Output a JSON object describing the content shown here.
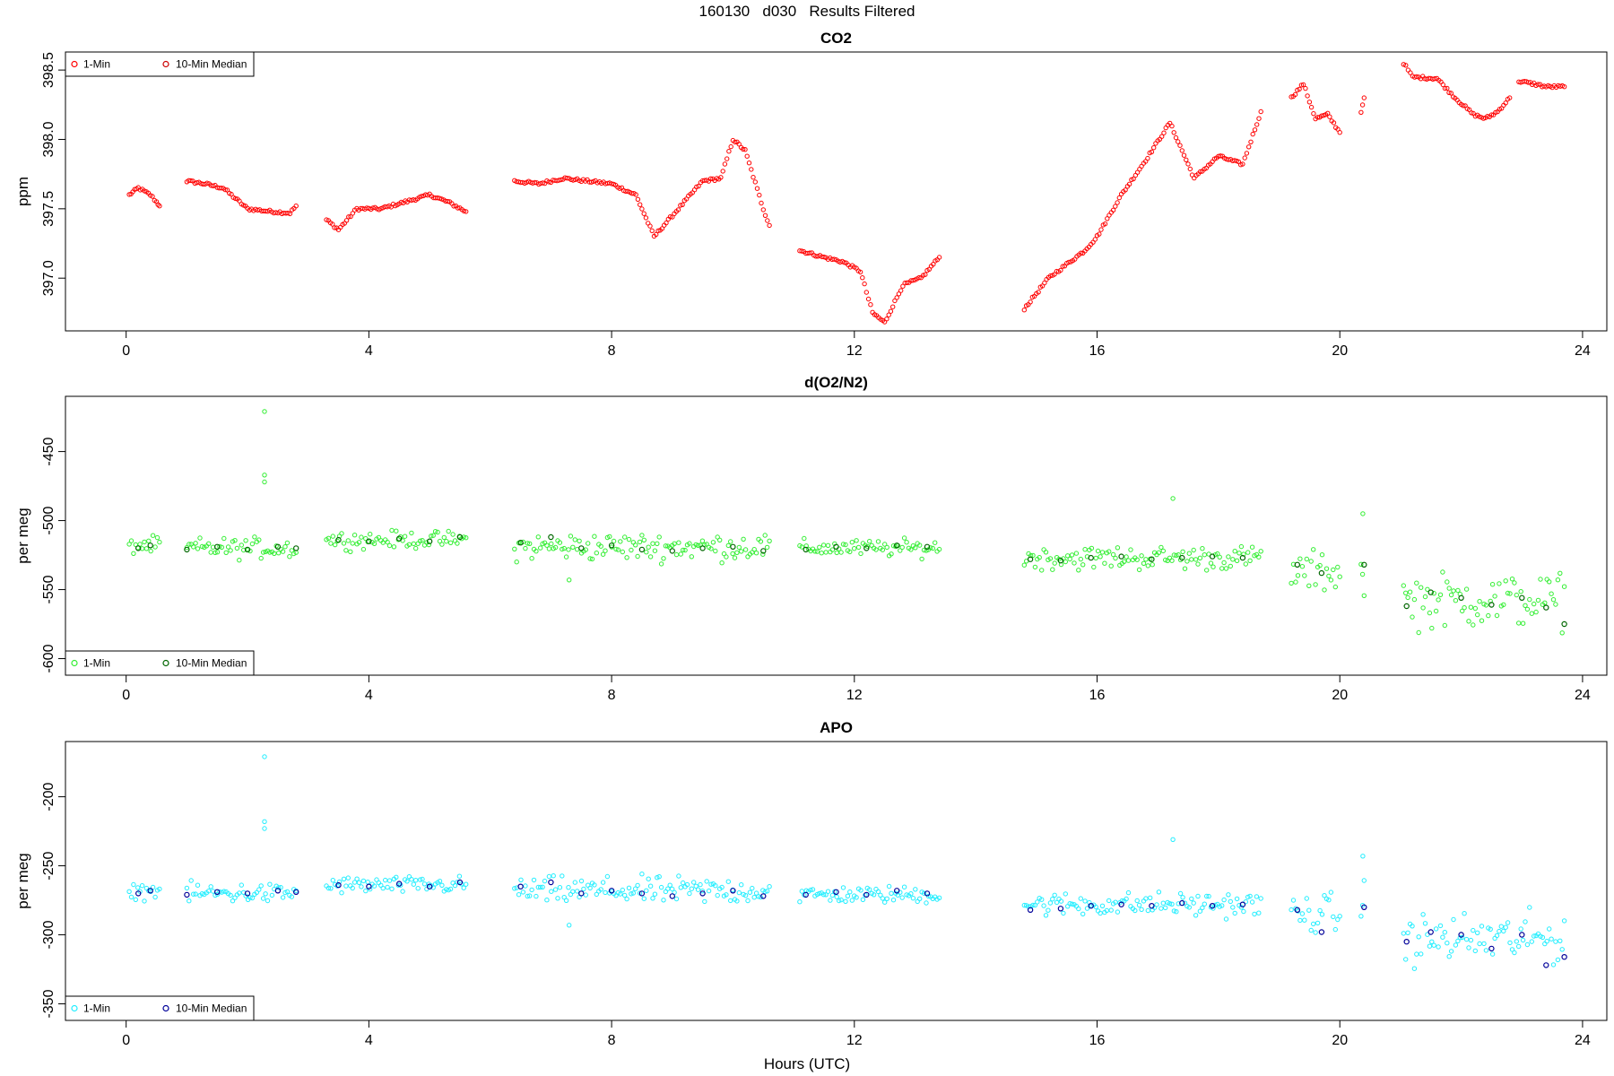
{
  "page_title": "160130   d030   Results Filtered",
  "x_axis_label": "Hours (UTC)",
  "chart_data": [
    {
      "type": "scatter",
      "title": "CO2",
      "ylabel": "ppm",
      "xlim": [
        -1,
        24.4
      ],
      "ylim": [
        396.62,
        398.63
      ],
      "xticks": [
        0,
        4,
        8,
        12,
        16,
        20,
        24
      ],
      "yticks": [
        397.0,
        397.5,
        398.0,
        398.5
      ],
      "ytick_labels": [
        "397.0",
        "397.5",
        "398.0",
        "398.5"
      ],
      "legend": {
        "placement": "top-left",
        "entries": [
          "1-Min",
          "10-Min Median"
        ]
      },
      "series": [
        {
          "name": "1-Min",
          "color": "#ff0000",
          "marker": "open-circle",
          "kind": "1min",
          "segments": [
            {
              "x": [
                0.05,
                0.2,
                0.4,
                0.5,
                0.55
              ],
              "y": [
                397.6,
                397.65,
                397.6,
                397.55,
                397.52
              ]
            },
            {
              "x": [
                1.0,
                1.3,
                1.6,
                2.0,
                2.4,
                2.7,
                2.8
              ],
              "y": [
                397.7,
                397.68,
                397.65,
                397.5,
                397.48,
                397.47,
                397.52
              ]
            },
            {
              "x": [
                3.3,
                3.5,
                3.8,
                4.2,
                4.6,
                5.0,
                5.3,
                5.6
              ],
              "y": [
                397.42,
                397.35,
                397.5,
                397.5,
                397.55,
                397.6,
                397.55,
                397.48
              ]
            },
            {
              "x": [
                6.4,
                6.8,
                7.2,
                7.6,
                8.0,
                8.4,
                8.7,
                9.0,
                9.5,
                9.8,
                10.0,
                10.2,
                10.5,
                10.6
              ],
              "y": [
                397.7,
                397.68,
                397.72,
                397.7,
                397.68,
                397.6,
                397.3,
                397.45,
                397.7,
                397.72,
                398.0,
                397.92,
                397.5,
                397.38
              ]
            },
            {
              "x": [
                11.1,
                11.5,
                11.8,
                12.1,
                12.3,
                12.5,
                12.8,
                13.1,
                13.4
              ],
              "y": [
                397.2,
                397.15,
                397.12,
                397.05,
                396.75,
                396.68,
                396.95,
                397.0,
                397.15
              ]
            },
            {
              "x": [
                14.8,
                15.2,
                15.5,
                15.8,
                16.0,
                16.4,
                16.8,
                17.2,
                17.6,
                18.0,
                18.4,
                18.7
              ],
              "y": [
                396.78,
                397.0,
                397.1,
                397.2,
                397.3,
                397.6,
                397.85,
                398.12,
                397.72,
                397.88,
                397.82,
                398.2
              ]
            },
            {
              "x": [
                19.2,
                19.4,
                19.6,
                19.8,
                20.0
              ],
              "y": [
                398.3,
                398.4,
                398.15,
                398.18,
                398.05
              ]
            },
            {
              "x": [
                20.35,
                20.4
              ],
              "y": [
                398.2,
                398.3
              ]
            },
            {
              "x": [
                21.05,
                21.2,
                21.6,
                21.9,
                22.2,
                22.4,
                22.6,
                22.8
              ],
              "y": [
                398.55,
                398.45,
                398.44,
                398.3,
                398.18,
                398.15,
                398.2,
                398.3
              ]
            },
            {
              "x": [
                22.95,
                23.2,
                23.4,
                23.7
              ],
              "y": [
                398.42,
                398.4,
                398.38,
                398.38
              ]
            }
          ]
        },
        {
          "name": "10-Min Median",
          "color": "#cc0000",
          "marker": "open-circle",
          "kind": "median",
          "x": [],
          "y": []
        }
      ]
    },
    {
      "type": "scatter",
      "title": "d(O2/N2)",
      "ylabel": "per meg",
      "xlim": [
        -1,
        24.4
      ],
      "ylim": [
        -612,
        -410
      ],
      "xticks": [
        0,
        4,
        8,
        12,
        16,
        20,
        24
      ],
      "yticks": [
        -450,
        -500,
        -550,
        -600
      ],
      "ytick_labels": [
        "-450",
        "-500",
        "-550",
        "-600"
      ],
      "legend": {
        "placement": "bottom-left",
        "entries": [
          "1-Min",
          "10-Min Median"
        ]
      },
      "series": [
        {
          "name": "1-Min",
          "color": "#33ee33",
          "marker": "open-circle",
          "kind": "1min",
          "bands": [
            {
              "from": 0.05,
              "to": 0.55,
              "center": -518,
              "spread": 5
            },
            {
              "from": 1.0,
              "to": 2.8,
              "center": -520,
              "spread": 6
            },
            {
              "from": 3.3,
              "to": 5.6,
              "center": -514,
              "spread": 5
            },
            {
              "from": 6.4,
              "to": 10.6,
              "center": -519,
              "spread": 8
            },
            {
              "from": 11.1,
              "to": 13.4,
              "center": -520,
              "spread": 5
            },
            {
              "from": 14.8,
              "to": 18.7,
              "center": -527,
              "spread": 7
            },
            {
              "from": 19.2,
              "to": 20.0,
              "center": -537,
              "spread": 12
            },
            {
              "from": 20.35,
              "to": 20.4,
              "center": -535,
              "spread": 18
            },
            {
              "from": 21.05,
              "to": 23.7,
              "center": -558,
              "spread": 16
            }
          ],
          "outliers": {
            "x": [
              2.28,
              2.28,
              2.28,
              7.3,
              17.25,
              20.38
            ],
            "y": [
              -421,
              -467,
              -472,
              -543,
              -484,
              -495
            ]
          }
        },
        {
          "name": "10-Min Median",
          "color": "#006600",
          "marker": "open-circle",
          "kind": "median",
          "x": [
            0.2,
            0.4,
            1.0,
            1.5,
            2.0,
            2.5,
            2.8,
            3.5,
            4.0,
            4.5,
            5.0,
            5.5,
            6.5,
            7.0,
            7.5,
            8.0,
            8.5,
            9.0,
            9.5,
            10.0,
            10.5,
            11.2,
            11.7,
            12.2,
            12.7,
            13.2,
            14.9,
            15.4,
            15.9,
            16.4,
            16.9,
            17.4,
            17.9,
            18.4,
            19.3,
            19.7,
            20.4,
            21.1,
            21.5,
            22.0,
            22.5,
            23.0,
            23.4,
            23.7
          ],
          "y": [
            -520,
            -518,
            -521,
            -519,
            -521,
            -519,
            -520,
            -514,
            -515,
            -513,
            -515,
            -512,
            -516,
            -512,
            -520,
            -518,
            -521,
            -522,
            -520,
            -519,
            -522,
            -521,
            -519,
            -520,
            -518,
            -519,
            -528,
            -529,
            -527,
            -526,
            -528,
            -527,
            -526,
            -527,
            -532,
            -538,
            -532,
            -562,
            -552,
            -556,
            -561,
            -556,
            -563,
            -575
          ]
        }
      ]
    },
    {
      "type": "scatter",
      "title": "APO",
      "ylabel": "per meg",
      "xlim": [
        -1,
        24.4
      ],
      "ylim": [
        -362,
        -160
      ],
      "xticks": [
        0,
        4,
        8,
        12,
        16,
        20,
        24
      ],
      "yticks": [
        -200,
        -250,
        -300,
        -350
      ],
      "ytick_labels": [
        "-200",
        "-250",
        "-300",
        "-350"
      ],
      "legend": {
        "placement": "bottom-left",
        "entries": [
          "1-Min",
          "10-Min Median"
        ]
      },
      "series": [
        {
          "name": "1-Min",
          "color": "#22eeff",
          "marker": "open-circle",
          "kind": "1min",
          "bands": [
            {
              "from": 0.05,
              "to": 0.55,
              "center": -268,
              "spread": 5
            },
            {
              "from": 1.0,
              "to": 2.8,
              "center": -270,
              "spread": 6
            },
            {
              "from": 3.3,
              "to": 5.6,
              "center": -264,
              "spread": 5
            },
            {
              "from": 6.4,
              "to": 10.6,
              "center": -268,
              "spread": 8
            },
            {
              "from": 11.1,
              "to": 13.4,
              "center": -271,
              "spread": 5
            },
            {
              "from": 14.8,
              "to": 18.7,
              "center": -278,
              "spread": 7
            },
            {
              "from": 19.2,
              "to": 20.0,
              "center": -285,
              "spread": 12
            },
            {
              "from": 20.35,
              "to": 20.4,
              "center": -280,
              "spread": 18
            },
            {
              "from": 21.05,
              "to": 23.7,
              "center": -303,
              "spread": 15
            }
          ],
          "outliers": {
            "x": [
              2.28,
              2.28,
              2.28,
              7.3,
              17.25,
              20.38
            ],
            "y": [
              -171,
              -218,
              -223,
              -293,
              -231,
              -243
            ]
          }
        },
        {
          "name": "10-Min Median",
          "color": "#000099",
          "marker": "open-circle",
          "kind": "median",
          "x": [
            0.2,
            0.4,
            1.0,
            1.5,
            2.0,
            2.5,
            2.8,
            3.5,
            4.0,
            4.5,
            5.0,
            5.5,
            6.5,
            7.0,
            7.5,
            8.0,
            8.5,
            9.0,
            9.5,
            10.0,
            10.5,
            11.2,
            11.7,
            12.2,
            12.7,
            13.2,
            14.9,
            15.4,
            15.9,
            16.4,
            16.9,
            17.4,
            17.9,
            18.4,
            19.3,
            19.7,
            20.4,
            21.1,
            21.5,
            22.0,
            22.5,
            23.0,
            23.4,
            23.7
          ],
          "y": [
            -270,
            -268,
            -271,
            -269,
            -270,
            -268,
            -269,
            -264,
            -265,
            -263,
            -265,
            -262,
            -265,
            -262,
            -270,
            -268,
            -270,
            -272,
            -270,
            -268,
            -272,
            -271,
            -269,
            -271,
            -268,
            -270,
            -282,
            -281,
            -279,
            -278,
            -279,
            -277,
            -279,
            -278,
            -282,
            -298,
            -280,
            -305,
            -298,
            -300,
            -310,
            -300,
            -322,
            -316
          ]
        }
      ]
    }
  ]
}
